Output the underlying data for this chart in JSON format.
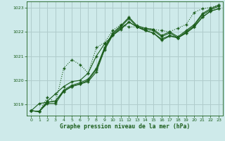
{
  "title": "Graphe pression niveau de la mer (hPa)",
  "bg_color": "#ceeaea",
  "grid_color": "#b0cccc",
  "line_color": "#1a5c1a",
  "xlim": [
    -0.5,
    23.5
  ],
  "ylim": [
    1018.55,
    1023.25
  ],
  "yticks": [
    1019,
    1020,
    1021,
    1022,
    1023
  ],
  "xticks": [
    0,
    1,
    2,
    3,
    4,
    5,
    6,
    7,
    8,
    9,
    10,
    11,
    12,
    13,
    14,
    15,
    16,
    17,
    18,
    19,
    20,
    21,
    22,
    23
  ],
  "line1_x": [
    0,
    1,
    2,
    3,
    4,
    5,
    6,
    7,
    8,
    9,
    10,
    11,
    12,
    13,
    14,
    15,
    16,
    17,
    18,
    19,
    20,
    21,
    22,
    23
  ],
  "line1_y": [
    1018.75,
    1018.72,
    1019.05,
    1019.05,
    1019.55,
    1019.75,
    1019.85,
    1020.0,
    1020.45,
    1021.3,
    1021.9,
    1022.2,
    1022.55,
    1022.2,
    1022.1,
    1022.05,
    1021.8,
    1021.95,
    1021.75,
    1022.0,
    1022.25,
    1022.7,
    1022.9,
    1023.05
  ],
  "line2_x": [
    0,
    1,
    2,
    3,
    4,
    5,
    6,
    7,
    8,
    9,
    10,
    11,
    12,
    13,
    14,
    15,
    16,
    17,
    18,
    19,
    20,
    21,
    22,
    23
  ],
  "line2_y": [
    1018.75,
    1018.72,
    1019.1,
    1019.15,
    1019.6,
    1019.8,
    1019.9,
    1020.05,
    1020.5,
    1021.35,
    1021.95,
    1022.25,
    1022.6,
    1022.25,
    1022.15,
    1022.1,
    1021.85,
    1022.0,
    1021.8,
    1022.05,
    1022.3,
    1022.75,
    1022.95,
    1023.1
  ],
  "line3_x": [
    0,
    1,
    2,
    3,
    4,
    5,
    6,
    7,
    8,
    9,
    10,
    11,
    12,
    13,
    14,
    15,
    16,
    17,
    18,
    19,
    20,
    21,
    22,
    23
  ],
  "line3_y": [
    1018.75,
    1018.72,
    1019.15,
    1019.45,
    1019.75,
    1019.95,
    1020.0,
    1020.3,
    1021.0,
    1021.5,
    1021.85,
    1022.15,
    1022.4,
    1022.2,
    1022.05,
    1021.95,
    1021.65,
    1021.82,
    1021.75,
    1021.95,
    1022.2,
    1022.6,
    1022.85,
    1022.95
  ],
  "line4_x": [
    0,
    1,
    2,
    3,
    4,
    5,
    6,
    7,
    8,
    9,
    10,
    11,
    12,
    13,
    14,
    15,
    16,
    17,
    18,
    19,
    20,
    21,
    22,
    23
  ],
  "line4_y": [
    1018.75,
    1019.05,
    1019.1,
    1019.15,
    1019.55,
    1019.75,
    1019.85,
    1019.95,
    1020.35,
    1021.25,
    1021.85,
    1022.1,
    1022.4,
    1022.2,
    1022.05,
    1021.95,
    1021.7,
    1021.85,
    1021.75,
    1021.95,
    1022.2,
    1022.6,
    1022.85,
    1022.95
  ],
  "line5_x": [
    0,
    1,
    2,
    3,
    4,
    5,
    6,
    7,
    8,
    9,
    10,
    11,
    12,
    13,
    14,
    15,
    16,
    17,
    18,
    19,
    20,
    21,
    22,
    23
  ],
  "line5_y": [
    1018.75,
    1018.72,
    1019.3,
    1019.1,
    1020.5,
    1020.85,
    1020.65,
    1020.3,
    1021.35,
    1021.55,
    1022.05,
    1022.3,
    1022.2,
    1022.2,
    1022.15,
    1022.1,
    1022.05,
    1022.0,
    1022.15,
    1022.3,
    1022.8,
    1022.95,
    1023.0,
    1023.1
  ]
}
